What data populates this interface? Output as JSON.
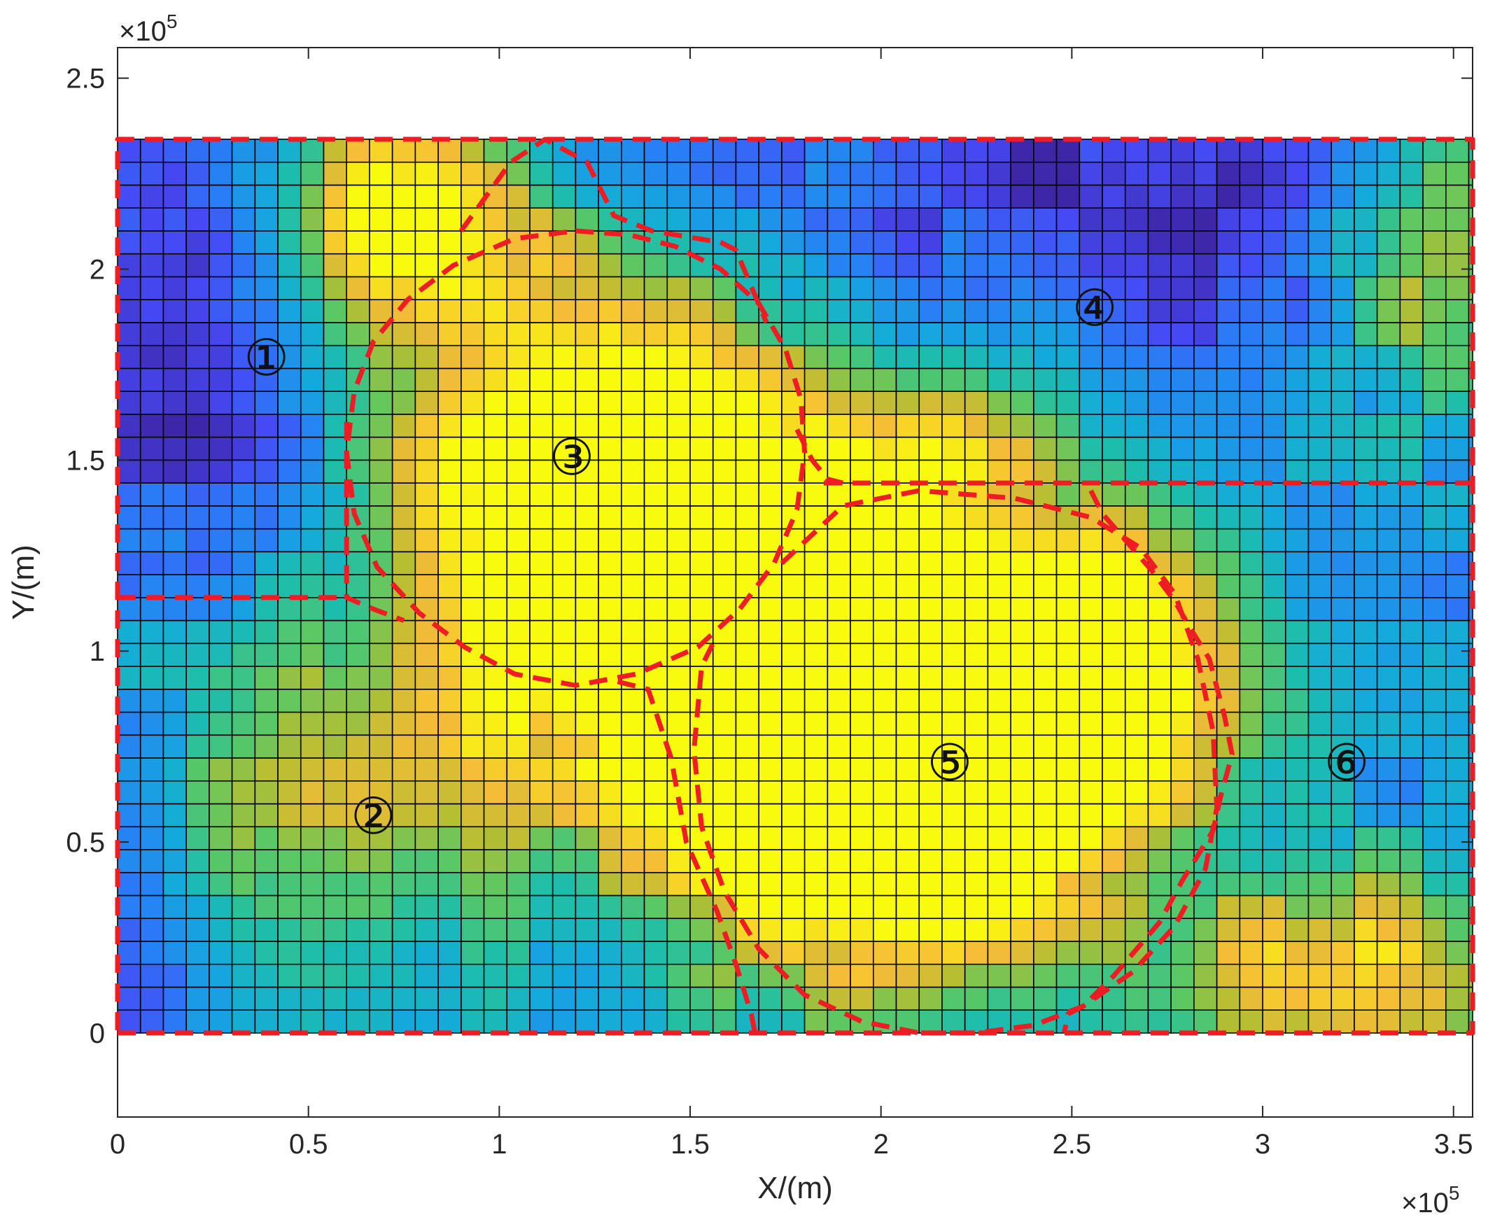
{
  "chart_data": {
    "type": "heatmap",
    "title": "",
    "xlabel": "X/(m)",
    "ylabel": "Y/(m)",
    "x_exponent_label": "×10^5",
    "y_exponent_label": "×10^5",
    "xlim": [
      0,
      355000
    ],
    "ylim": [
      -22000,
      258000
    ],
    "x_tick_values": [
      0,
      50000,
      100000,
      150000,
      200000,
      250000,
      300000,
      350000
    ],
    "x_tick_labels": [
      "0",
      "0.5",
      "1",
      "1.5",
      "2",
      "2.5",
      "3",
      "3.5"
    ],
    "y_tick_values": [
      0,
      50000,
      100000,
      150000,
      200000,
      250000
    ],
    "y_tick_labels": [
      "0",
      "0.5",
      "1",
      "1.5",
      "2",
      "2.5"
    ],
    "grid": {
      "cell_size_m": 6000,
      "x_extent": [
        0,
        355000
      ],
      "y_extent": [
        0,
        234000
      ],
      "colormap": "parula",
      "value_range": [
        0,
        1
      ]
    },
    "hotspots": [
      {
        "x": 120000,
        "y": 150000,
        "sx": 40000,
        "sy": 40000,
        "a": 0.78
      },
      {
        "x": 150000,
        "y": 125000,
        "sx": 35000,
        "sy": 30000,
        "a": 0.45
      },
      {
        "x": 190000,
        "y": 100000,
        "sx": 45000,
        "sy": 35000,
        "a": 0.9
      },
      {
        "x": 200000,
        "y": 50000,
        "sx": 40000,
        "sy": 30000,
        "a": 0.78
      },
      {
        "x": 260000,
        "y": 100000,
        "sx": 25000,
        "sy": 25000,
        "a": 0.6
      },
      {
        "x": 230000,
        "y": 75000,
        "sx": 30000,
        "sy": 25000,
        "a": 0.55
      },
      {
        "x": 75000,
        "y": 215000,
        "sx": 25000,
        "sy": 20000,
        "a": 0.72
      },
      {
        "x": 320000,
        "y": 15000,
        "sx": 30000,
        "sy": 20000,
        "a": 0.62
      },
      {
        "x": 345000,
        "y": 205000,
        "sx": 20000,
        "sy": 30000,
        "a": 0.5
      },
      {
        "x": 75000,
        "y": 65000,
        "sx": 35000,
        "sy": 30000,
        "a": 0.3
      },
      {
        "x": 35000,
        "y": 60000,
        "sx": 40000,
        "sy": 35000,
        "a": 0.2
      },
      {
        "x": 220000,
        "y": 155000,
        "sx": 15000,
        "sy": 12000,
        "a": 0.35
      }
    ],
    "coldspots": [
      {
        "x": 20000,
        "y": 180000,
        "sx": 30000,
        "sy": 45000,
        "a": 0.3
      },
      {
        "x": 5000,
        "y": 40000,
        "sx": 12000,
        "sy": 30000,
        "a": 0.22
      },
      {
        "x": 260000,
        "y": 222000,
        "sx": 60000,
        "sy": 25000,
        "a": 0.25
      },
      {
        "x": 300000,
        "y": 200000,
        "sx": 30000,
        "sy": 25000,
        "a": 0.12
      },
      {
        "x": 140000,
        "y": 228000,
        "sx": 30000,
        "sy": 12000,
        "a": 0.12
      }
    ],
    "zones": [
      {
        "id": 1,
        "label": "①",
        "x": 39000,
        "y": 177000
      },
      {
        "id": 2,
        "label": "②",
        "x": 67000,
        "y": 57000
      },
      {
        "id": 3,
        "label": "③",
        "x": 119000,
        "y": 151000
      },
      {
        "id": 4,
        "label": "④",
        "x": 256000,
        "y": 190000
      },
      {
        "id": 5,
        "label": "⑤",
        "x": 218000,
        "y": 71000
      },
      {
        "id": 6,
        "label": "⑥",
        "x": 322000,
        "y": 71000
      }
    ],
    "boundaries": [
      {
        "name": "outer-frame",
        "closed": true,
        "points": [
          [
            0,
            0
          ],
          [
            355000,
            0
          ],
          [
            355000,
            234000
          ],
          [
            0,
            234000
          ]
        ]
      },
      {
        "name": "zone-1-2-divider",
        "closed": false,
        "points": [
          [
            0,
            114000
          ],
          [
            60000,
            114000
          ]
        ]
      },
      {
        "name": "zone-3-4-divider",
        "closed": false,
        "points": [
          [
            185000,
            144000
          ],
          [
            355000,
            144000
          ]
        ]
      },
      {
        "name": "zone-3-outline",
        "closed": true,
        "points": [
          [
            120000,
            210000
          ],
          [
            134000,
            209000
          ],
          [
            146000,
            206000
          ],
          [
            158000,
            200000
          ],
          [
            168000,
            191000
          ],
          [
            175000,
            179000
          ],
          [
            179000,
            166000
          ],
          [
            180000,
            152000
          ],
          [
            178000,
            137000
          ],
          [
            172000,
            123000
          ],
          [
            163000,
            111000
          ],
          [
            152000,
            101000
          ],
          [
            136000,
            94000
          ],
          [
            120000,
            91000
          ],
          [
            104000,
            94000
          ],
          [
            91000,
            101000
          ],
          [
            79000,
            110000
          ],
          [
            68000,
            122000
          ],
          [
            62000,
            136000
          ],
          [
            60000,
            152000
          ],
          [
            62000,
            168000
          ],
          [
            67000,
            181000
          ],
          [
            76000,
            192000
          ],
          [
            88000,
            201000
          ],
          [
            104000,
            208000
          ]
        ]
      },
      {
        "name": "zone-3-north-arm",
        "closed": false,
        "points": [
          [
            90000,
            210000
          ],
          [
            103000,
            228000
          ],
          [
            112000,
            234000
          ],
          [
            123000,
            228000
          ],
          [
            130000,
            214000
          ],
          [
            140000,
            210000
          ],
          [
            158000,
            207000
          ],
          [
            162000,
            205000
          ],
          [
            170000,
            186000
          ]
        ]
      },
      {
        "name": "zone-3-southwest-arm",
        "closed": false,
        "points": [
          [
            60000,
            160000
          ],
          [
            60000,
            114000
          ],
          [
            67000,
            111000
          ],
          [
            75000,
            108000
          ]
        ]
      },
      {
        "name": "zone-3-east-arm",
        "closed": false,
        "points": [
          [
            178000,
            158000
          ],
          [
            182000,
            150000
          ],
          [
            186000,
            145000
          ],
          [
            190000,
            144000
          ]
        ]
      },
      {
        "name": "zone-5-outline",
        "closed": false,
        "points": [
          [
            174000,
            123000
          ],
          [
            190000,
            138000
          ],
          [
            210000,
            142000
          ],
          [
            235000,
            140000
          ],
          [
            255000,
            135000
          ],
          [
            268000,
            127000
          ],
          [
            277000,
            115000
          ],
          [
            283000,
            98000
          ],
          [
            287000,
            79000
          ],
          [
            288000,
            59000
          ],
          [
            285000,
            43000
          ],
          [
            277000,
            28000
          ],
          [
            266000,
            16000
          ],
          [
            253000,
            7000
          ],
          [
            240000,
            2000
          ],
          [
            225000,
            0
          ],
          [
            210000,
            0
          ],
          [
            195000,
            3000
          ],
          [
            180000,
            10000
          ],
          [
            168000,
            22000
          ],
          [
            159000,
            37000
          ],
          [
            153000,
            54000
          ],
          [
            151000,
            74000
          ],
          [
            153000,
            96000
          ],
          [
            157000,
            104000
          ]
        ]
      },
      {
        "name": "zone-5-west-arm",
        "closed": false,
        "points": [
          [
            131000,
            92000
          ],
          [
            139000,
            90000
          ],
          [
            145000,
            72000
          ],
          [
            149000,
            50000
          ],
          [
            157000,
            32000
          ],
          [
            162000,
            18000
          ],
          [
            166000,
            5000
          ],
          [
            167000,
            0
          ]
        ]
      },
      {
        "name": "zone-5-east-arm",
        "closed": false,
        "points": [
          [
            255000,
            142000
          ],
          [
            258000,
            136000
          ],
          [
            271000,
            121000
          ],
          [
            277000,
            113000
          ],
          [
            281000,
            106000
          ],
          [
            286000,
            98000
          ],
          [
            290000,
            83000
          ],
          [
            292000,
            73000
          ],
          [
            289000,
            62000
          ],
          [
            287000,
            53000
          ],
          [
            279000,
            40000
          ],
          [
            273000,
            29000
          ],
          [
            261000,
            15000
          ],
          [
            253000,
            7000
          ],
          [
            249000,
            5000
          ],
          [
            248000,
            0
          ]
        ]
      }
    ]
  }
}
